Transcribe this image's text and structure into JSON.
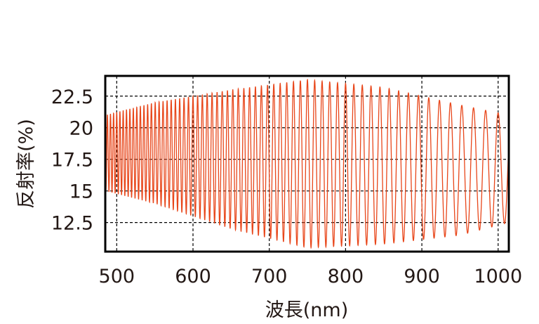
{
  "chart_data": {
    "type": "line",
    "title": "",
    "xlabel": "波長(nm)",
    "ylabel": "反射率(%)",
    "xlim": [
      485,
      1014
    ],
    "ylim": [
      10.2,
      24.1
    ],
    "xticks": [
      500,
      600,
      700,
      800,
      900,
      1000
    ],
    "xtick_labels": [
      "500",
      "600",
      "700",
      "800",
      "900",
      "1000"
    ],
    "yticks": [
      12.5,
      15,
      17.5,
      20,
      22.5
    ],
    "ytick_labels": [
      "12.5",
      "15",
      "17.5",
      "20",
      "22.5"
    ],
    "grid": true,
    "series": [
      {
        "name": "reflectance",
        "color": "#e8461a",
        "description_of_form": "interference fringes",
        "fringe_2nd_nm": 60000,
        "upper_envelope": {
          "x": [
            485,
            550,
            650,
            750,
            850,
            950,
            1014
          ],
          "y": [
            21.0,
            22.0,
            23.0,
            23.8,
            23.2,
            21.8,
            21.0
          ]
        },
        "lower_envelope": {
          "x": [
            485,
            550,
            650,
            750,
            850,
            950,
            1014
          ],
          "y": [
            15.0,
            14.0,
            12.0,
            10.5,
            10.8,
            11.5,
            12.5
          ]
        }
      }
    ]
  }
}
